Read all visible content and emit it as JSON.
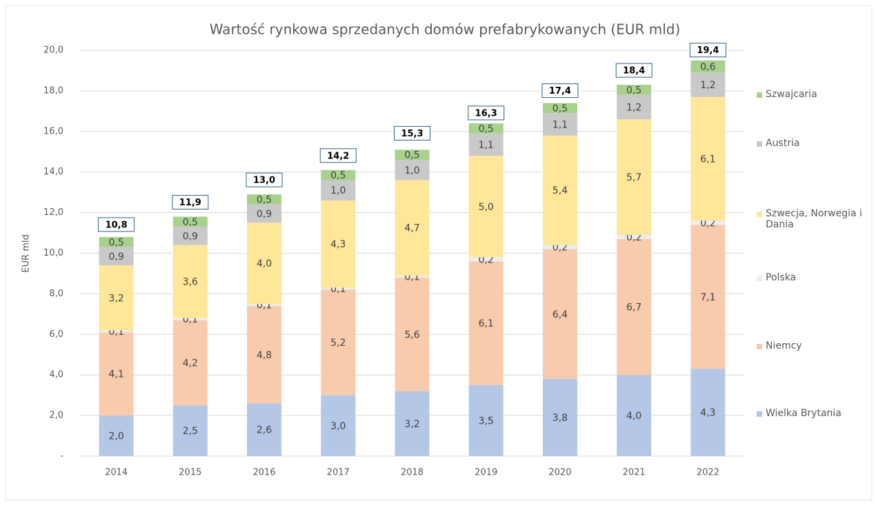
{
  "chart_data": {
    "type": "stacked_bar",
    "title": "Wartość rynkowa sprzedanych domów prefabrykowanych (EUR mld)",
    "y_label": "EUR mld",
    "categories": [
      "2014",
      "2015",
      "2016",
      "2017",
      "2018",
      "2019",
      "2020",
      "2021",
      "2022"
    ],
    "series": [
      {
        "name": "Wielka Brytania",
        "color": "#b4c7e7",
        "values": [
          2.0,
          2.5,
          2.6,
          3.0,
          3.2,
          3.5,
          3.8,
          4.0,
          4.3
        ],
        "value_labels": [
          "2,0",
          "2,5",
          "2,6",
          "3,0",
          "3,2",
          "3,5",
          "3,8",
          "4,0",
          "4,3"
        ]
      },
      {
        "name": "Niemcy",
        "color": "#f8cbad",
        "values": [
          4.1,
          4.2,
          4.8,
          5.2,
          5.6,
          6.1,
          6.4,
          6.7,
          7.1
        ],
        "value_labels": [
          "4,1",
          "4,2",
          "4,8",
          "5,2",
          "5,6",
          "6,1",
          "6,4",
          "6,7",
          "7,1"
        ]
      },
      {
        "name": "Polska",
        "color": "#ededed",
        "values": [
          0.1,
          0.1,
          0.1,
          0.1,
          0.1,
          0.2,
          0.2,
          0.2,
          0.2
        ],
        "value_labels": [
          "0,1",
          "0,1",
          "0,1",
          "0,1",
          "0,1",
          "0,2",
          "0,2",
          "0,2",
          "0,2"
        ]
      },
      {
        "name": "Szwecja, Norwegia i Dania",
        "color": "#ffe699",
        "values": [
          3.2,
          3.6,
          4.0,
          4.3,
          4.7,
          5.0,
          5.4,
          5.7,
          6.1
        ],
        "value_labels": [
          "3,2",
          "3,6",
          "4,0",
          "4,3",
          "4,7",
          "5,0",
          "5,4",
          "5,7",
          "6,1"
        ]
      },
      {
        "name": "Austria",
        "color": "#c9c9c9",
        "values": [
          0.9,
          0.9,
          0.9,
          1.0,
          1.0,
          1.1,
          1.1,
          1.2,
          1.2
        ],
        "value_labels": [
          "0,9",
          "0,9",
          "0,9",
          "1,0",
          "1,0",
          "1,1",
          "1,1",
          "1,2",
          "1,2"
        ]
      },
      {
        "name": "Szwajcaria",
        "color": "#a9d18e",
        "values": [
          0.5,
          0.5,
          0.5,
          0.5,
          0.5,
          0.5,
          0.5,
          0.5,
          0.6
        ],
        "value_labels": [
          "0,5",
          "0,5",
          "0,5",
          "0,5",
          "0,5",
          "0,5",
          "0,5",
          "0,5",
          "0,6"
        ]
      }
    ],
    "totals": [
      10.8,
      11.9,
      13.0,
      14.2,
      15.3,
      16.3,
      17.4,
      18.4,
      19.4
    ],
    "total_labels": [
      "10,8",
      "11,9",
      "13,0",
      "14,2",
      "15,3",
      "16,3",
      "17,4",
      "18,4",
      "19,4"
    ],
    "ylim": [
      0,
      20
    ],
    "yticks": [
      {
        "value": 0,
        "label": "-"
      },
      {
        "value": 2,
        "label": "2,0"
      },
      {
        "value": 4,
        "label": "4,0"
      },
      {
        "value": 6,
        "label": "6,0"
      },
      {
        "value": 8,
        "label": "8,0"
      },
      {
        "value": 10,
        "label": "10,0"
      },
      {
        "value": 12,
        "label": "12,0"
      },
      {
        "value": 14,
        "label": "14,0"
      },
      {
        "value": 16,
        "label": "16,0"
      },
      {
        "value": 18,
        "label": "18,0"
      },
      {
        "value": 20,
        "label": "20,0"
      }
    ],
    "grid": true,
    "legend": "right"
  }
}
